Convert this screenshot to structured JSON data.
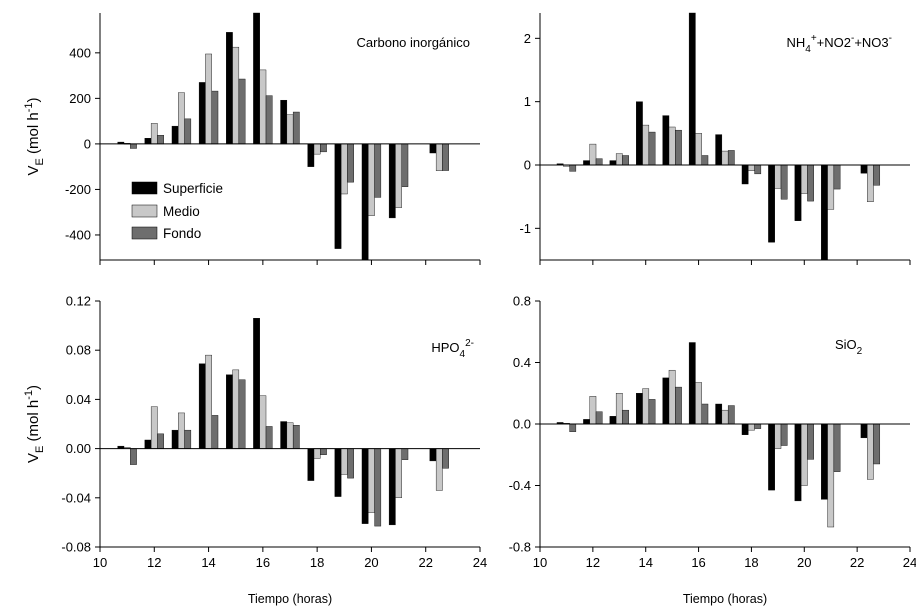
{
  "figure": {
    "x_title": "Tiempo (horas)",
    "legend": [
      {
        "name": "Superficie",
        "color": "#000000"
      },
      {
        "name": "Medio",
        "color": "#c8c8c8"
      },
      {
        "name": "Fondo",
        "color": "#6e6e6e"
      }
    ]
  },
  "chart_data": [
    {
      "type": "bar",
      "annotation": "Carbono inorgánico",
      "ylabel": {
        "main": "V",
        "sub": "E",
        "unit": "(mol h",
        "sup": "-1",
        "close": ")"
      },
      "xlabel": "",
      "xlim": [
        10,
        24
      ],
      "ylim": [
        -510,
        575
      ],
      "yticks": [
        -400,
        -200,
        0,
        200,
        400
      ],
      "xticks": [
        10,
        12,
        14,
        16,
        18,
        20,
        22,
        24
      ],
      "ytick_labels": [
        "-400",
        "-200",
        "0",
        "200",
        "400"
      ],
      "xtick_labels": [],
      "x": [
        11,
        12,
        13,
        14,
        15,
        16,
        17,
        18,
        19,
        20,
        21,
        22.5
      ],
      "series": [
        {
          "name": "Superficie",
          "values": [
            8,
            25,
            78,
            270,
            490,
            575,
            192,
            -100,
            -460,
            -510,
            -325,
            -40
          ]
        },
        {
          "name": "Medio",
          "values": [
            3,
            90,
            225,
            395,
            425,
            325,
            128,
            -45,
            -220,
            -315,
            -280,
            -118
          ]
        },
        {
          "name": "Fondo",
          "values": [
            -20,
            38,
            110,
            232,
            285,
            212,
            140,
            -35,
            -168,
            -235,
            -188,
            -117
          ]
        }
      ],
      "legend_placement": "lower-left"
    },
    {
      "type": "bar",
      "annotation_main": "NH",
      "annotation_parts": [
        "4",
        "+",
        "+NO2",
        "-",
        "+NO3",
        "-"
      ],
      "ylabel": null,
      "xlabel": "",
      "xlim": [
        10,
        24
      ],
      "ylim": [
        -1.5,
        2.4
      ],
      "yticks": [
        -1,
        0,
        1,
        2
      ],
      "xticks": [
        10,
        12,
        14,
        16,
        18,
        20,
        22,
        24
      ],
      "ytick_labels": [
        "-1",
        "0",
        "1",
        "2"
      ],
      "xtick_labels": [],
      "x": [
        11,
        12,
        13,
        14,
        15,
        16,
        17,
        18,
        19,
        20,
        21,
        22.5
      ],
      "series": [
        {
          "name": "Superficie",
          "values": [
            0.02,
            0.07,
            0.07,
            1.0,
            0.78,
            2.4,
            0.48,
            -0.3,
            -1.22,
            -0.88,
            -1.5,
            -0.13
          ]
        },
        {
          "name": "Medio",
          "values": [
            -0.02,
            0.33,
            0.18,
            0.63,
            0.6,
            0.5,
            0.22,
            -0.09,
            -0.37,
            -0.45,
            -0.7,
            -0.58
          ]
        },
        {
          "name": "Fondo",
          "values": [
            -0.1,
            0.1,
            0.15,
            0.52,
            0.55,
            0.15,
            0.23,
            -0.14,
            -0.54,
            -0.57,
            -0.38,
            -0.32
          ]
        }
      ]
    },
    {
      "type": "bar",
      "annotation_main": "HPO",
      "annotation_parts": [
        "4",
        "2-"
      ],
      "ylabel": {
        "main": "V",
        "sub": "E",
        "unit": "(mol h",
        "sup": "-1",
        "close": ")"
      },
      "xlabel": "Tiempo (horas)",
      "xlim": [
        10,
        24
      ],
      "ylim": [
        -0.08,
        0.12
      ],
      "yticks": [
        -0.08,
        -0.04,
        0.0,
        0.04,
        0.08,
        0.12
      ],
      "xticks": [
        10,
        12,
        14,
        16,
        18,
        20,
        22,
        24
      ],
      "ytick_labels": [
        "-0.08",
        "-0.04",
        "0.00",
        "0.04",
        "0.08",
        "0.12"
      ],
      "xtick_labels": [
        "10",
        "12",
        "14",
        "16",
        "18",
        "20",
        "22",
        "24"
      ],
      "x": [
        11,
        12,
        13,
        14,
        15,
        16,
        17,
        18,
        19,
        20,
        21,
        22.5
      ],
      "series": [
        {
          "name": "Superficie",
          "values": [
            0.002,
            0.007,
            0.015,
            0.069,
            0.06,
            0.106,
            0.022,
            -0.026,
            -0.039,
            -0.061,
            -0.062,
            -0.01
          ]
        },
        {
          "name": "Medio",
          "values": [
            0.001,
            0.034,
            0.029,
            0.076,
            0.064,
            0.043,
            0.021,
            -0.008,
            -0.021,
            -0.052,
            -0.04,
            -0.034
          ]
        },
        {
          "name": "Fondo",
          "values": [
            -0.013,
            0.012,
            0.015,
            0.027,
            0.056,
            0.018,
            0.019,
            -0.005,
            -0.024,
            -0.063,
            -0.009,
            -0.016
          ]
        }
      ]
    },
    {
      "type": "bar",
      "annotation_main": "SiO",
      "annotation_parts": [
        "2"
      ],
      "ylabel": null,
      "xlabel": "Tiempo (horas)",
      "xlim": [
        10,
        24
      ],
      "ylim": [
        -0.8,
        0.8
      ],
      "yticks": [
        -0.8,
        -0.4,
        0.0,
        0.4,
        0.8
      ],
      "xticks": [
        10,
        12,
        14,
        16,
        18,
        20,
        22,
        24
      ],
      "ytick_labels": [
        "-0.8",
        "-0.4",
        "0.0",
        "0.4",
        "0.8"
      ],
      "xtick_labels": [
        "10",
        "12",
        "14",
        "16",
        "18",
        "20",
        "22",
        "24"
      ],
      "x": [
        11,
        12,
        13,
        14,
        15,
        16,
        17,
        18,
        19,
        20,
        21,
        22.5
      ],
      "series": [
        {
          "name": "Superficie",
          "values": [
            0.01,
            0.03,
            0.05,
            0.2,
            0.3,
            0.53,
            0.13,
            -0.07,
            -0.43,
            -0.5,
            -0.49,
            -0.09
          ]
        },
        {
          "name": "Medio",
          "values": [
            0.005,
            0.18,
            0.2,
            0.23,
            0.35,
            0.27,
            0.09,
            -0.04,
            -0.16,
            -0.4,
            -0.67,
            -0.36
          ]
        },
        {
          "name": "Fondo",
          "values": [
            -0.05,
            0.08,
            0.09,
            0.16,
            0.24,
            0.13,
            0.12,
            -0.03,
            -0.14,
            -0.23,
            -0.31,
            -0.26
          ]
        }
      ]
    }
  ]
}
